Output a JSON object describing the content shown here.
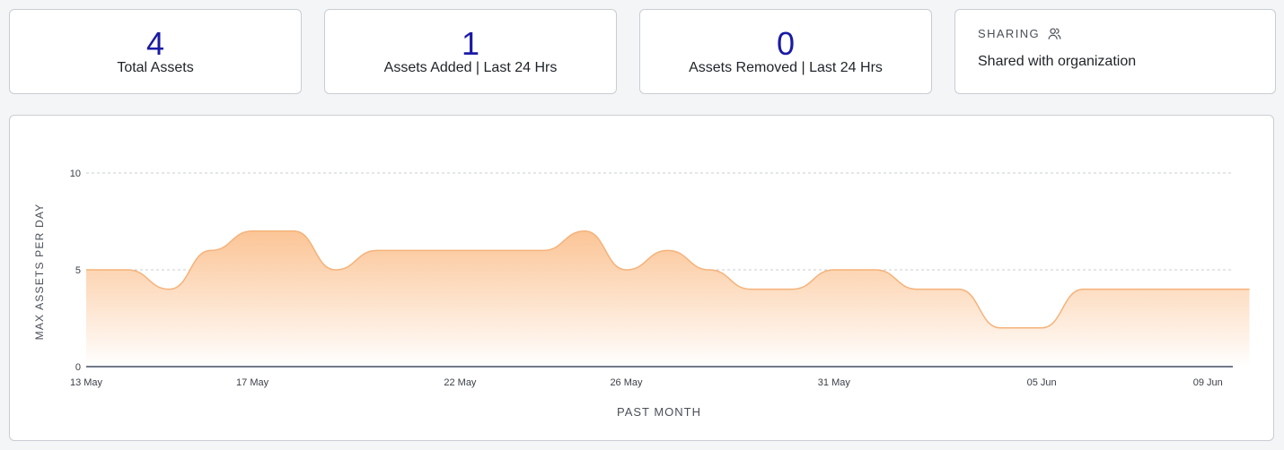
{
  "stats": [
    {
      "value": "4",
      "label": "Total Assets"
    },
    {
      "value": "1",
      "label": "Assets Added | Last 24 Hrs"
    },
    {
      "value": "0",
      "label": "Assets Removed | Last 24 Hrs"
    }
  ],
  "sharing": {
    "title": "SHARING",
    "icon": "users-icon",
    "text": "Shared with organization"
  },
  "colors": {
    "stat_value": "#1a1aa6",
    "area_line": "#f5b27a",
    "area_fill_top": "#fbc291",
    "axis": "#1f2a44"
  },
  "chart_data": {
    "type": "area",
    "title": "",
    "xlabel": "PAST MONTH",
    "ylabel": "MAX ASSETS PER DAY",
    "ylim": [
      0,
      10
    ],
    "yticks": [
      0,
      5,
      10
    ],
    "grid": true,
    "x_tick_labels": [
      "13 May",
      "17 May",
      "22 May",
      "26 May",
      "31 May",
      "05 Jun",
      "09 Jun"
    ],
    "x_tick_days": [
      0,
      4,
      9,
      13,
      18,
      23,
      27
    ],
    "x_range_days": [
      0,
      27.6
    ],
    "x": [
      "13 May",
      "14 May",
      "15 May",
      "16 May",
      "17 May",
      "18 May",
      "19 May",
      "20 May",
      "21 May",
      "22 May",
      "23 May",
      "24 May",
      "25 May",
      "26 May",
      "27 May",
      "28 May",
      "29 May",
      "30 May",
      "31 May",
      "01 Jun",
      "02 Jun",
      "03 Jun",
      "04 Jun",
      "05 Jun",
      "06 Jun",
      "07 Jun",
      "08 Jun",
      "09 Jun",
      "10 Jun"
    ],
    "values": [
      5,
      5,
      4,
      6,
      7,
      7,
      5,
      6,
      6,
      6,
      6,
      6,
      7,
      5,
      6,
      5,
      4,
      4,
      5,
      5,
      4,
      4,
      2,
      2,
      4,
      4,
      4,
      4,
      4
    ]
  }
}
